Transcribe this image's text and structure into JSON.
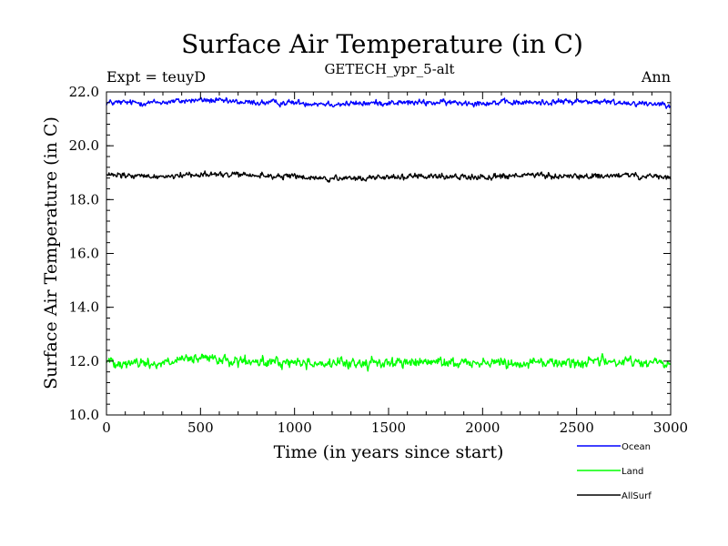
{
  "chart_data": {
    "type": "line",
    "title": "Surface Air Temperature (in C)",
    "subtitle": "GETECH_ypr_5-alt",
    "left_label": "Expt = teuyD",
    "right_label": "Ann",
    "xlabel": "Time (in years since start)",
    "ylabel": "Surface Air Temperature (in C)",
    "xlim": [
      0,
      3000
    ],
    "ylim": [
      10.0,
      22.0
    ],
    "xticks": [
      0,
      500,
      1000,
      1500,
      2000,
      2500,
      3000
    ],
    "yticks": [
      "10.0",
      "12.0",
      "14.0",
      "16.0",
      "18.0",
      "20.0",
      "22.0"
    ],
    "grid": false,
    "legend_position": "bottom-right",
    "series": [
      {
        "name": "Ocean",
        "color": "#0000ff",
        "mean": 21.6,
        "x": [
          0,
          250,
          500,
          750,
          1000,
          1250,
          1500,
          1750,
          2000,
          2250,
          2500,
          2750,
          3000
        ],
        "values": [
          21.6,
          21.6,
          21.7,
          21.6,
          21.6,
          21.55,
          21.6,
          21.6,
          21.6,
          21.6,
          21.65,
          21.6,
          21.55
        ]
      },
      {
        "name": "Land",
        "color": "#00ff00",
        "mean": 11.95,
        "x": [
          0,
          250,
          500,
          750,
          1000,
          1250,
          1500,
          1750,
          2000,
          2250,
          2500,
          2750,
          3000
        ],
        "values": [
          12.0,
          11.9,
          12.1,
          11.95,
          11.95,
          11.9,
          11.95,
          11.95,
          11.95,
          11.95,
          11.95,
          12.0,
          11.9
        ]
      },
      {
        "name": "AllSurf",
        "color": "#000000",
        "mean": 18.85,
        "x": [
          0,
          250,
          500,
          750,
          1000,
          1250,
          1500,
          1750,
          2000,
          2250,
          2500,
          2750,
          3000
        ],
        "values": [
          18.9,
          18.85,
          18.95,
          18.9,
          18.85,
          18.75,
          18.85,
          18.85,
          18.85,
          18.9,
          18.85,
          18.9,
          18.8
        ]
      }
    ]
  }
}
